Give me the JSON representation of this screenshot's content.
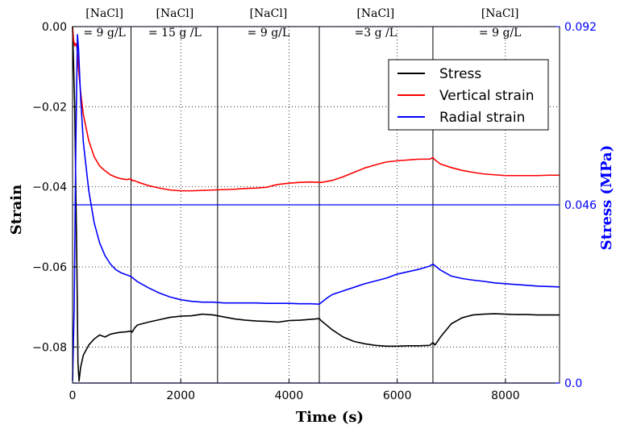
{
  "chart_data": {
    "type": "line",
    "xlabel": "Time (s)",
    "ylabel": "Strain",
    "y2label": "Stress (MPa)",
    "xlim": [
      0,
      9000
    ],
    "ylim": [
      -0.089,
      0.0
    ],
    "y2lim": [
      0.0,
      0.092
    ],
    "xticks": [
      "0",
      "2000",
      "4000",
      "6000",
      "8000"
    ],
    "xtick_values": [
      0,
      2000,
      4000,
      6000,
      8000
    ],
    "yticks": [
      "0.00",
      "−0.02",
      "−0.04",
      "−0.06",
      "−0.08"
    ],
    "ytick_values": [
      0.0,
      -0.02,
      -0.04,
      -0.06,
      -0.08
    ],
    "y2ticks": [
      "0.092",
      "0.046",
      "0.0"
    ],
    "y2tick_values": [
      0.092,
      0.046,
      0.0
    ],
    "grid": "dotted",
    "legend_position": "top-right",
    "phase_boundaries": [
      1080,
      2680,
      4560,
      6660
    ],
    "phases": [
      {
        "line1": "[NaCl]",
        "line2": "= 9 g/L",
        "x": 590
      },
      {
        "line1": "[NaCl]",
        "line2": "= 15 g /L",
        "x": 1890
      },
      {
        "line1": "[NaCl]",
        "line2": "= 9 g/L",
        "x": 3620
      },
      {
        "line1": "[NaCl]",
        "line2": "=3 g /L",
        "x": 5600
      },
      {
        "line1": "[NaCl]",
        "line2": "= 9 g/L",
        "x": 7900
      }
    ],
    "series": [
      {
        "name": "Stress",
        "color": "#000000",
        "x": [
          0,
          40,
          80,
          100,
          120,
          150,
          200,
          300,
          400,
          500,
          600,
          700,
          800,
          900,
          1000,
          1080,
          1100,
          1150,
          1200,
          1400,
          1600,
          1800,
          2000,
          2200,
          2400,
          2600,
          2800,
          3000,
          3200,
          3400,
          3600,
          3800,
          4000,
          4200,
          4400,
          4560,
          4600,
          4800,
          5000,
          5200,
          5400,
          5600,
          5800,
          6000,
          6200,
          6400,
          6600,
          6660,
          6700,
          6800,
          7000,
          7200,
          7400,
          7600,
          7800,
          8000,
          8200,
          8400,
          8600,
          8800,
          9000
        ],
        "y": [
          0.0,
          -0.02,
          -0.06,
          -0.084,
          -0.0885,
          -0.085,
          -0.082,
          -0.0795,
          -0.078,
          -0.077,
          -0.0775,
          -0.0768,
          -0.0765,
          -0.0763,
          -0.0762,
          -0.076,
          -0.0763,
          -0.0752,
          -0.0745,
          -0.0738,
          -0.0732,
          -0.0726,
          -0.0723,
          -0.0722,
          -0.0718,
          -0.072,
          -0.0725,
          -0.073,
          -0.0733,
          -0.0735,
          -0.0736,
          -0.0738,
          -0.0734,
          -0.0733,
          -0.0731,
          -0.0729,
          -0.0735,
          -0.0757,
          -0.0775,
          -0.0786,
          -0.0792,
          -0.0796,
          -0.0798,
          -0.0798,
          -0.0797,
          -0.0797,
          -0.0796,
          -0.0789,
          -0.0795,
          -0.0775,
          -0.0742,
          -0.0727,
          -0.072,
          -0.0718,
          -0.0717,
          -0.0718,
          -0.0719,
          -0.0719,
          -0.072,
          -0.072,
          -0.072
        ]
      },
      {
        "name": "Vertical strain",
        "color": "#ff0000",
        "x": [
          0,
          20,
          40,
          60,
          80,
          100,
          150,
          200,
          300,
          400,
          500,
          600,
          700,
          800,
          900,
          1000,
          1080,
          1100,
          1150,
          1200,
          1400,
          1600,
          1800,
          2000,
          2200,
          2400,
          2600,
          2800,
          3000,
          3200,
          3400,
          3600,
          3700,
          3800,
          4000,
          4200,
          4400,
          4600,
          4800,
          5000,
          5200,
          5400,
          5600,
          5800,
          6000,
          6200,
          6400,
          6600,
          6660,
          6700,
          6800,
          7000,
          7200,
          7400,
          7600,
          7800,
          8000,
          8200,
          8400,
          8600,
          8800,
          9000
        ],
        "y": [
          0.0,
          -0.0035,
          -0.0048,
          -0.0042,
          -0.005,
          -0.009,
          -0.0165,
          -0.022,
          -0.0285,
          -0.0325,
          -0.0348,
          -0.036,
          -0.037,
          -0.0376,
          -0.038,
          -0.0382,
          -0.038,
          -0.0384,
          -0.0385,
          -0.0388,
          -0.0397,
          -0.0403,
          -0.0408,
          -0.041,
          -0.041,
          -0.0409,
          -0.0408,
          -0.0407,
          -0.0406,
          -0.0404,
          -0.0403,
          -0.0401,
          -0.0397,
          -0.0394,
          -0.0391,
          -0.0389,
          -0.0388,
          -0.0389,
          -0.0384,
          -0.0375,
          -0.0364,
          -0.0353,
          -0.0345,
          -0.0338,
          -0.0335,
          -0.0333,
          -0.0331,
          -0.0331,
          -0.0327,
          -0.0333,
          -0.0343,
          -0.0352,
          -0.0359,
          -0.0364,
          -0.0368,
          -0.037,
          -0.0372,
          -0.0372,
          -0.0372,
          -0.0372,
          -0.0371,
          -0.0371
        ]
      },
      {
        "name": "Radial strain",
        "color": "#0000ff",
        "x": [
          0,
          30,
          60,
          90,
          110,
          150,
          200,
          300,
          400,
          500,
          600,
          700,
          800,
          900,
          1000,
          1080,
          1200,
          1400,
          1600,
          1800,
          2000,
          2200,
          2400,
          2600,
          2800,
          3000,
          3200,
          3400,
          3600,
          3800,
          4000,
          4200,
          4400,
          4560,
          4700,
          4800,
          5000,
          5200,
          5400,
          5600,
          5800,
          6000,
          6200,
          6400,
          6600,
          6660,
          6700,
          6800,
          7000,
          7200,
          7400,
          7600,
          7800,
          8000,
          8200,
          8400,
          8600,
          8800,
          9000
        ],
        "y": [
          -0.0885,
          -0.07,
          -0.03,
          -0.002,
          -0.0055,
          -0.018,
          -0.029,
          -0.041,
          -0.049,
          -0.054,
          -0.0572,
          -0.0593,
          -0.0607,
          -0.0615,
          -0.062,
          -0.0624,
          -0.0637,
          -0.0652,
          -0.0665,
          -0.0675,
          -0.0682,
          -0.0686,
          -0.0688,
          -0.0688,
          -0.069,
          -0.069,
          -0.069,
          -0.069,
          -0.0691,
          -0.0691,
          -0.0691,
          -0.0692,
          -0.0692,
          -0.0693,
          -0.0678,
          -0.0669,
          -0.066,
          -0.0651,
          -0.0642,
          -0.0635,
          -0.0628,
          -0.0618,
          -0.0612,
          -0.0606,
          -0.0598,
          -0.0593,
          -0.0597,
          -0.0608,
          -0.0623,
          -0.0629,
          -0.0633,
          -0.0636,
          -0.064,
          -0.0642,
          -0.0644,
          -0.0646,
          -0.0648,
          -0.0649,
          -0.065
        ]
      }
    ],
    "stress_secondary_lines": [
      {
        "color": "#0000ff",
        "y2": 0.092,
        "style": "dotted"
      },
      {
        "color": "#0000ff",
        "y2": 0.046,
        "style": "solid"
      },
      {
        "color": "#0000ff",
        "y2": 0.0,
        "style": "solid"
      }
    ]
  }
}
